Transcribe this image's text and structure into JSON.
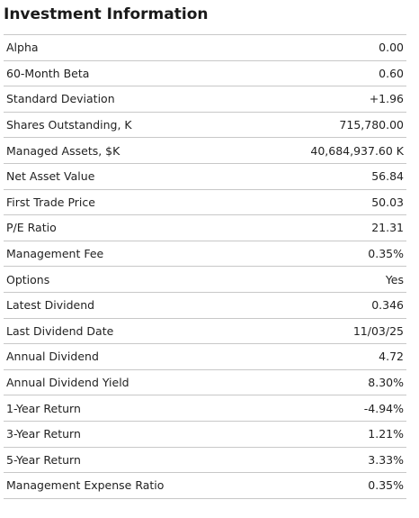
{
  "title": "Investment Information",
  "table": {
    "rows": [
      [
        "Alpha",
        "0.00"
      ],
      [
        "60-Month Beta",
        "0.60"
      ],
      [
        "Standard Deviation",
        "+1.96"
      ],
      [
        "Shares Outstanding, K",
        "715,780.00"
      ],
      [
        "Managed Assets, $K",
        "40,684,937.60 K"
      ],
      [
        "Net Asset Value",
        "56.84"
      ],
      [
        "First Trade Price",
        "50.03"
      ],
      [
        "P/E Ratio",
        "21.31"
      ],
      [
        "Management Fee",
        "0.35%"
      ],
      [
        "Options",
        "Yes"
      ],
      [
        "Latest Dividend",
        "0.346"
      ],
      [
        "Last Dividend Date",
        "11/03/25"
      ],
      [
        "Annual Dividend",
        "4.72"
      ],
      [
        "Annual Dividend Yield",
        "8.30%"
      ],
      [
        "1-Year Return",
        "-4.94%"
      ],
      [
        "3-Year Return",
        "1.21%"
      ],
      [
        "5-Year Return",
        "3.33%"
      ],
      [
        "Management Expense Ratio",
        "0.35%"
      ]
    ]
  }
}
